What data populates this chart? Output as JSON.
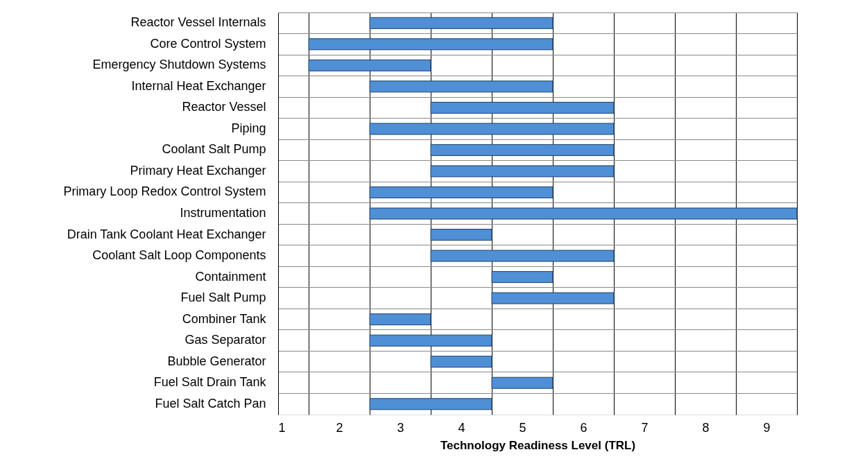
{
  "chart_data": {
    "type": "bar",
    "orientation": "horizontal",
    "xlabel": "Technology Readiness Level (TRL)",
    "categories": [
      "Reactor Vessel Internals",
      "Core Control System",
      "Emergency Shutdown Systems",
      "Internal Heat Exchanger",
      "Reactor Vessel",
      "Piping",
      "Coolant Salt Pump",
      "Primary Heat Exchanger",
      "Primary Loop Redox Control System",
      "Instrumentation",
      "Drain Tank Coolant Heat Exchanger",
      "Coolant Salt Loop Components",
      "Containment",
      "Fuel Salt Pump",
      "Combiner Tank",
      "Gas Separator",
      "Bubble Generator",
      "Fuel Salt Drain Tank",
      "Fuel Salt Catch Pan"
    ],
    "base": [
      2.5,
      1.5,
      1.5,
      2.5,
      3.5,
      2.5,
      3.5,
      3.5,
      2.5,
      2.5,
      3.5,
      3.5,
      4.5,
      4.5,
      2.5,
      2.5,
      3.5,
      4.5,
      2.5
    ],
    "values": [
      3,
      4,
      2,
      3,
      3,
      4,
      3,
      3,
      3,
      7,
      1,
      3,
      1,
      2,
      1,
      2,
      1,
      1,
      2
    ],
    "color": "#4f8fd6",
    "xlim": [
      1,
      9.5
    ],
    "xticks": [
      1,
      {
        "value": 1.5,
        "label": null
      },
      2,
      {
        "value": 2.5,
        "label": null
      },
      3,
      {
        "value": 3.5,
        "label": null
      },
      4,
      {
        "value": 4.5,
        "label": null
      },
      5,
      {
        "value": 5.5,
        "label": null
      },
      6,
      {
        "value": 6.5,
        "label": null
      },
      7,
      {
        "value": 7.5,
        "label": null
      },
      8,
      {
        "value": 8.5,
        "label": null
      },
      9,
      {
        "value": 9.5,
        "label": null
      }
    ],
    "grid": true
  }
}
